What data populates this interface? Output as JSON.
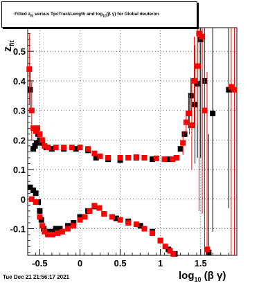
{
  "window": {
    "title_parts": {
      "a": "Fitted  z",
      "a_sub": "fit",
      "b": "  versus  TpcTrackLength and log",
      "b_sub": "10",
      "c": "(β γ) for Global deuteron"
    },
    "footer": "Tue Dec 21 21:56:17 2021"
  },
  "colors": {
    "black_series": "#000000",
    "red_series": "#ff0000",
    "background": "#ffffff"
  },
  "chart_data": {
    "type": "scatter",
    "title": "Fitted z_fit versus TpcTrackLength and log10(βγ) for Global deuteron",
    "xlabel": "log10(βγ)",
    "ylabel": "z_fit",
    "xlim": [
      -0.65,
      1.95
    ],
    "ylim": [
      -0.19,
      0.58
    ],
    "x_ticks": [
      -0.5,
      0,
      0.5,
      1,
      1.5
    ],
    "x_tick_labels": [
      "-0.5",
      "0",
      "0.5",
      "1",
      "1.5"
    ],
    "y_ticks": [
      -0.1,
      0,
      0.1,
      0.2,
      0.3,
      0.4,
      0.5
    ],
    "y_tick_labels": [
      "-0.1",
      "0",
      "0.1",
      "0.2",
      "0.3",
      "0.4",
      "0.5"
    ],
    "grid": true,
    "series": [
      {
        "color": "#000000",
        "points": [
          {
            "x": -0.62,
            "y": 0.37,
            "err": 0.08
          },
          {
            "x": -0.58,
            "y": 0.17
          },
          {
            "x": -0.56,
            "y": 0.18
          },
          {
            "x": -0.54,
            "y": 0.19
          },
          {
            "x": -0.52,
            "y": 0.22
          },
          {
            "x": -0.5,
            "y": 0.2
          },
          {
            "x": -0.47,
            "y": 0.19
          },
          {
            "x": -0.42,
            "y": 0.175
          },
          {
            "x": -0.35,
            "y": 0.17
          },
          {
            "x": -0.2,
            "y": 0.17
          },
          {
            "x": -0.05,
            "y": 0.17
          },
          {
            "x": 0.1,
            "y": 0.165
          },
          {
            "x": 0.2,
            "y": 0.14
          },
          {
            "x": 0.35,
            "y": 0.135
          },
          {
            "x": 0.5,
            "y": 0.132
          },
          {
            "x": 0.7,
            "y": 0.14
          },
          {
            "x": 0.9,
            "y": 0.135
          },
          {
            "x": 1.1,
            "y": 0.135
          },
          {
            "x": 1.2,
            "y": 0.14
          },
          {
            "x": 1.25,
            "y": 0.17
          },
          {
            "x": 1.3,
            "y": 0.22
          },
          {
            "x": 1.35,
            "y": 0.29,
            "err": 0.05
          },
          {
            "x": 1.38,
            "y": 0.35,
            "err": 0.06
          },
          {
            "x": 1.43,
            "y": 0.32,
            "err": 0.2
          },
          {
            "x": 1.46,
            "y": 0.39,
            "err": 0.25
          },
          {
            "x": 1.5,
            "y": 0.54,
            "err": 0.4
          },
          {
            "x": 1.55,
            "y": 0.4,
            "err": 0.4
          },
          {
            "x": 1.6,
            "y": -0.18,
            "err": 0.4
          },
          {
            "x": 1.65,
            "y": 0.29,
            "err": 0.4
          },
          {
            "x": 1.85,
            "y": 0.37,
            "err": 0.4
          },
          {
            "x": -0.62,
            "y": 0.04
          },
          {
            "x": -0.58,
            "y": 0.03
          },
          {
            "x": -0.55,
            "y": 0.02
          },
          {
            "x": -0.52,
            "y": -0.01
          },
          {
            "x": -0.5,
            "y": -0.04
          },
          {
            "x": -0.48,
            "y": -0.07
          },
          {
            "x": -0.45,
            "y": -0.1
          },
          {
            "x": -0.4,
            "y": -0.11
          },
          {
            "x": -0.35,
            "y": -0.11
          },
          {
            "x": -0.3,
            "y": -0.1
          },
          {
            "x": -0.25,
            "y": -0.1
          },
          {
            "x": -0.15,
            "y": -0.09
          },
          {
            "x": -0.08,
            "y": -0.08
          },
          {
            "x": 0.0,
            "y": -0.06
          },
          {
            "x": 0.1,
            "y": -0.04
          },
          {
            "x": 0.18,
            "y": -0.025
          },
          {
            "x": 0.3,
            "y": -0.05
          },
          {
            "x": 0.45,
            "y": -0.065
          },
          {
            "x": 0.6,
            "y": -0.075
          },
          {
            "x": 0.75,
            "y": -0.09
          },
          {
            "x": 0.9,
            "y": -0.11
          },
          {
            "x": 1.0,
            "y": -0.14
          },
          {
            "x": 1.1,
            "y": -0.17
          },
          {
            "x": 1.18,
            "y": -0.185
          }
        ]
      },
      {
        "color": "#ff0000",
        "points": [
          {
            "x": -0.63,
            "y": 0.44,
            "err": 0.12
          },
          {
            "x": -0.6,
            "y": 0.3,
            "err": 0.1
          },
          {
            "x": -0.58,
            "y": 0.24
          },
          {
            "x": -0.55,
            "y": 0.23
          },
          {
            "x": -0.53,
            "y": 0.24
          },
          {
            "x": -0.5,
            "y": 0.22
          },
          {
            "x": -0.47,
            "y": 0.2
          },
          {
            "x": -0.44,
            "y": 0.18
          },
          {
            "x": -0.4,
            "y": 0.175
          },
          {
            "x": -0.3,
            "y": 0.175
          },
          {
            "x": -0.2,
            "y": 0.175
          },
          {
            "x": -0.1,
            "y": 0.175
          },
          {
            "x": 0.0,
            "y": 0.175
          },
          {
            "x": 0.1,
            "y": 0.17
          },
          {
            "x": 0.18,
            "y": 0.155
          },
          {
            "x": 0.25,
            "y": 0.145
          },
          {
            "x": 0.35,
            "y": 0.14
          },
          {
            "x": 0.5,
            "y": 0.14
          },
          {
            "x": 0.6,
            "y": 0.14
          },
          {
            "x": 0.7,
            "y": 0.142
          },
          {
            "x": 0.8,
            "y": 0.14
          },
          {
            "x": 0.95,
            "y": 0.138
          },
          {
            "x": 1.05,
            "y": 0.135
          },
          {
            "x": 1.15,
            "y": 0.135
          },
          {
            "x": 1.2,
            "y": 0.14
          },
          {
            "x": 1.28,
            "y": 0.19,
            "err": 0.04
          },
          {
            "x": 1.32,
            "y": 0.26,
            "err": 0.04
          },
          {
            "x": 1.36,
            "y": 0.29,
            "err": 0.07
          },
          {
            "x": 1.39,
            "y": 0.25,
            "err": 0.15
          },
          {
            "x": 1.42,
            "y": 0.4,
            "err": 0.15
          },
          {
            "x": 1.46,
            "y": 0.45,
            "err": 0.2
          },
          {
            "x": 1.48,
            "y": 0.56,
            "err": 0.6
          },
          {
            "x": 1.52,
            "y": 0.55,
            "err": 0.6
          },
          {
            "x": 1.55,
            "y": 0.3,
            "err": 0.6
          },
          {
            "x": 1.58,
            "y": -0.17,
            "err": 0.6
          },
          {
            "x": 1.88,
            "y": 0.38,
            "err": 0.6
          },
          {
            "x": 1.92,
            "y": 0.37,
            "err": 0.6
          },
          {
            "x": -0.6,
            "y": 0.0
          },
          {
            "x": -0.55,
            "y": -0.01
          },
          {
            "x": -0.5,
            "y": -0.06
          },
          {
            "x": -0.47,
            "y": -0.09
          },
          {
            "x": -0.44,
            "y": -0.11
          },
          {
            "x": -0.4,
            "y": -0.12
          },
          {
            "x": -0.34,
            "y": -0.12
          },
          {
            "x": -0.28,
            "y": -0.115
          },
          {
            "x": -0.22,
            "y": -0.11
          },
          {
            "x": -0.15,
            "y": -0.1
          },
          {
            "x": -0.08,
            "y": -0.09
          },
          {
            "x": 0.0,
            "y": -0.07
          },
          {
            "x": 0.06,
            "y": -0.06
          },
          {
            "x": 0.12,
            "y": -0.04
          },
          {
            "x": 0.18,
            "y": -0.022
          },
          {
            "x": 0.24,
            "y": -0.03
          },
          {
            "x": 0.3,
            "y": -0.05
          },
          {
            "x": 0.4,
            "y": -0.06
          },
          {
            "x": 0.5,
            "y": -0.07
          },
          {
            "x": 0.6,
            "y": -0.08
          },
          {
            "x": 0.7,
            "y": -0.085
          },
          {
            "x": 0.8,
            "y": -0.1
          },
          {
            "x": 0.9,
            "y": -0.115
          },
          {
            "x": 1.0,
            "y": -0.14
          },
          {
            "x": 1.06,
            "y": -0.16
          },
          {
            "x": 1.12,
            "y": -0.175
          },
          {
            "x": 1.16,
            "y": -0.185
          }
        ]
      }
    ]
  }
}
